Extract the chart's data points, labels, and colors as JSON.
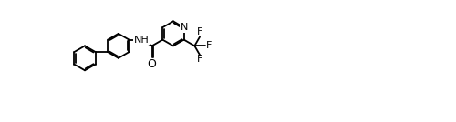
{
  "title": "3-Pyridinecarboxamide, N-[1,1-biphenyl]-4-yl-6-(trifluoromethyl)-",
  "bg_color": "#ffffff",
  "line_color": "#000000",
  "fig_width": 5.0,
  "fig_height": 1.34,
  "dpi": 100,
  "lw": 1.3,
  "fs": 8.0,
  "R": 0.175,
  "bl": 0.175
}
